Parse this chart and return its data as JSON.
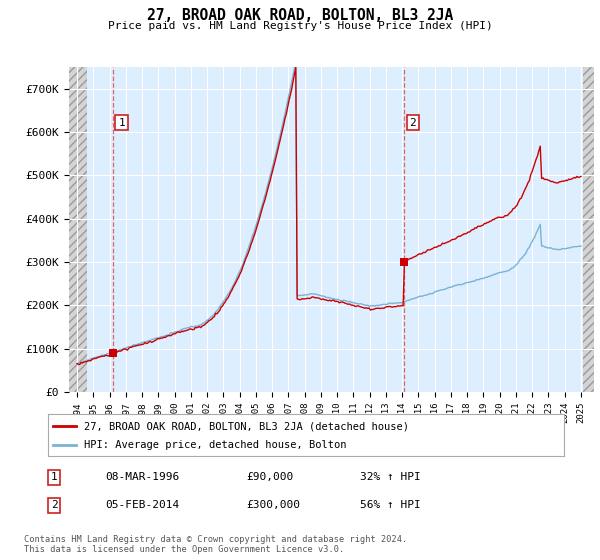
{
  "title": "27, BROAD OAK ROAD, BOLTON, BL3 2JA",
  "subtitle": "Price paid vs. HM Land Registry's House Price Index (HPI)",
  "legend_line1": "27, BROAD OAK ROAD, BOLTON, BL3 2JA (detached house)",
  "legend_line2": "HPI: Average price, detached house, Bolton",
  "footnote": "Contains HM Land Registry data © Crown copyright and database right 2024.\nThis data is licensed under the Open Government Licence v3.0.",
  "purchase1_date": 1996.18,
  "purchase1_price": 90000,
  "purchase1_label": "1",
  "purchase1_text": "08-MAR-1996",
  "purchase1_price_text": "£90,000",
  "purchase1_hpi_text": "32% ↑ HPI",
  "purchase2_date": 2014.09,
  "purchase2_price": 300000,
  "purchase2_label": "2",
  "purchase2_text": "05-FEB-2014",
  "purchase2_price_text": "£300,000",
  "purchase2_hpi_text": "56% ↑ HPI",
  "hpi_color": "#7ab3d4",
  "price_color": "#cc0000",
  "ylim": [
    0,
    750000
  ],
  "yticks": [
    0,
    100000,
    200000,
    300000,
    400000,
    500000,
    600000,
    700000
  ],
  "ytick_labels": [
    "£0",
    "£100K",
    "£200K",
    "£300K",
    "£400K",
    "£500K",
    "£600K",
    "£700K"
  ],
  "xlim_start": 1993.5,
  "xlim_end": 2025.8,
  "hatch_left_end": 1994.6,
  "hatch_right_start": 2025.1,
  "background_plot": "#ddeeff",
  "grid_color": "#ffffff"
}
